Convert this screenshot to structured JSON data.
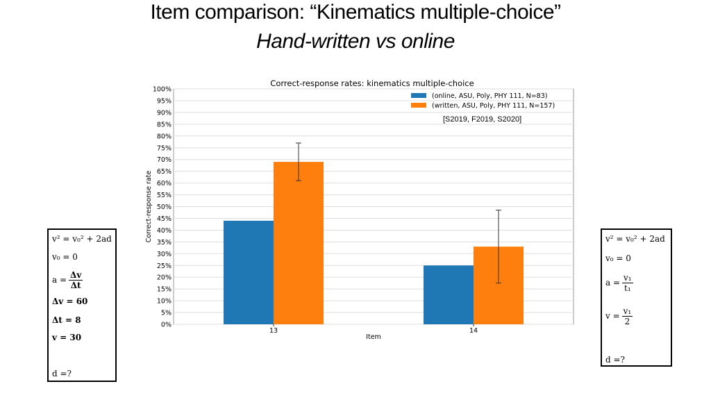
{
  "slide": {
    "title": "Item comparison: “Kinematics multiple-choice”",
    "subtitle": "Hand-written vs online"
  },
  "chart_data": {
    "type": "bar",
    "title": "Correct-response rates: kinematics multiple-choice",
    "xlabel": "Item",
    "ylabel": "Correct-response rate",
    "categories": [
      "13",
      "14"
    ],
    "ylim": [
      0,
      100
    ],
    "yticks": [
      "0%",
      "5%",
      "10%",
      "15%",
      "20%",
      "25%",
      "30%",
      "35%",
      "40%",
      "45%",
      "50%",
      "55%",
      "60%",
      "65%",
      "70%",
      "75%",
      "80%",
      "85%",
      "90%",
      "95%",
      "100%"
    ],
    "grid": true,
    "legend_position": "top-right",
    "legend_note": "[S2019, F2019, S2020]",
    "series": [
      {
        "name": "(online, ASU, Poly, PHY 111, N=83)",
        "values": [
          44,
          25
        ],
        "error": [
          null,
          null
        ],
        "color": "#1f77b4"
      },
      {
        "name": "(written, ASU, Poly, PHY 111, N=157)",
        "values": [
          69,
          33
        ],
        "error": [
          [
            61,
            77
          ],
          [
            17.5,
            48.5
          ]
        ],
        "color": "#ff7f0e"
      }
    ]
  },
  "left_equations": {
    "eq1": "v² = v₀² + 2ad",
    "eq2": "v₀ = 0",
    "eq3_lhs": "a =",
    "eq3_num": "Δv",
    "eq3_den": "Δt",
    "eq4": "Δv = 60",
    "eq5": "Δt = 8",
    "eq6": "v = 30",
    "eq7": "d =?"
  },
  "right_equations": {
    "eq1": "v² = v₀² + 2ad",
    "eq2": "v₀ = 0",
    "eq3_lhs": "a =",
    "eq3_num": "v₁",
    "eq3_den": "t₁",
    "eq4_lhs": "v =",
    "eq4_num": "v₁",
    "eq4_den": "2",
    "eq5": "d =?"
  }
}
